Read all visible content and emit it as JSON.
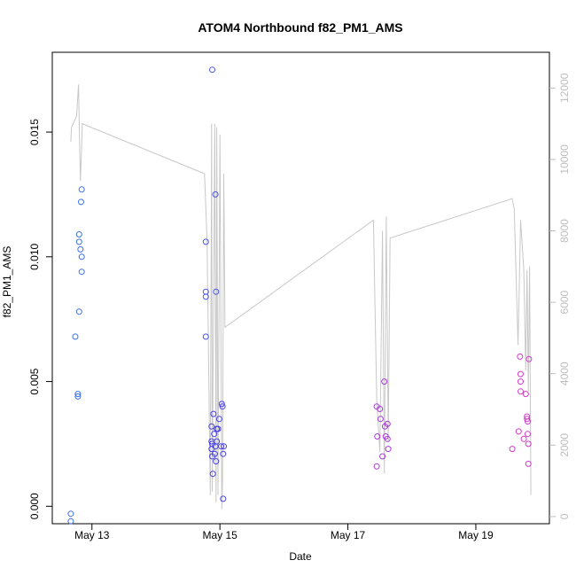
{
  "chart_data": {
    "type": "scatter",
    "title": "ATOM4 Northbound f82_PM1_AMS",
    "xlabel": "Date",
    "ylabel": "f82_PM1_AMS",
    "x_unit": "days since May 13 00:00",
    "xlim": [
      -0.62,
      7.15
    ],
    "ylim": [
      -0.0007,
      0.0182
    ],
    "y2lim": [
      -200,
      13000
    ],
    "x_ticks": [
      {
        "value": 0,
        "label": "May 13"
      },
      {
        "value": 2,
        "label": "May 15"
      },
      {
        "value": 4,
        "label": "May 17"
      },
      {
        "value": 6,
        "label": "May 19"
      }
    ],
    "y_ticks": [
      {
        "value": 0.0,
        "label": "0.000"
      },
      {
        "value": 0.005,
        "label": "0.005"
      },
      {
        "value": 0.01,
        "label": "0.010"
      },
      {
        "value": 0.015,
        "label": "0.015"
      }
    ],
    "y2_ticks": [
      {
        "value": 0,
        "label": "0"
      },
      {
        "value": 2000,
        "label": "2000"
      },
      {
        "value": 4000,
        "label": "4000"
      },
      {
        "value": 6000,
        "label": "6000"
      },
      {
        "value": 8000,
        "label": "8000"
      },
      {
        "value": 10000,
        "label": "10000"
      },
      {
        "value": 12000,
        "label": "12000"
      }
    ],
    "series": [
      {
        "name": "",
        "style": "points",
        "axis": "left",
        "points": [
          {
            "x": -0.33,
            "y": -0.0003,
            "c": "#3a6fe8"
          },
          {
            "x": -0.33,
            "y": -0.0006,
            "c": "#3a6fe8"
          },
          {
            "x": -0.26,
            "y": 0.0068,
            "c": "#3a6fe8"
          },
          {
            "x": -0.22,
            "y": 0.0045,
            "c": "#3a6fe8"
          },
          {
            "x": -0.22,
            "y": 0.0044,
            "c": "#3a6fe8"
          },
          {
            "x": -0.2,
            "y": 0.0078,
            "c": "#3a6fe8"
          },
          {
            "x": -0.2,
            "y": 0.0109,
            "c": "#3a6fe8"
          },
          {
            "x": -0.2,
            "y": 0.0106,
            "c": "#3a6fe8"
          },
          {
            "x": -0.18,
            "y": 0.0103,
            "c": "#3a6fe8"
          },
          {
            "x": -0.17,
            "y": 0.0122,
            "c": "#3a6fe8"
          },
          {
            "x": -0.16,
            "y": 0.0127,
            "c": "#3a6fe8"
          },
          {
            "x": -0.16,
            "y": 0.0094,
            "c": "#3a6fe8"
          },
          {
            "x": -0.16,
            "y": 0.01,
            "c": "#3a6fe8"
          },
          {
            "x": 1.78,
            "y": 0.0106,
            "c": "#4a55e6"
          },
          {
            "x": 1.78,
            "y": 0.0086,
            "c": "#4a55e6"
          },
          {
            "x": 1.78,
            "y": 0.0084,
            "c": "#4a55e6"
          },
          {
            "x": 1.78,
            "y": 0.0068,
            "c": "#4a55e6"
          },
          {
            "x": 1.88,
            "y": 0.0175,
            "c": "#4a55e6"
          },
          {
            "x": 1.93,
            "y": 0.0125,
            "c": "#4a55e6"
          },
          {
            "x": 1.94,
            "y": 0.0086,
            "c": "#4a55e6"
          },
          {
            "x": 1.87,
            "y": 0.0032,
            "c": "#4a40e4"
          },
          {
            "x": 1.87,
            "y": 0.0026,
            "c": "#4a40e4"
          },
          {
            "x": 1.88,
            "y": 0.0025,
            "c": "#4a40e4"
          },
          {
            "x": 1.87,
            "y": 0.0023,
            "c": "#4a40e4"
          },
          {
            "x": 1.88,
            "y": 0.002,
            "c": "#4a40e4"
          },
          {
            "x": 1.89,
            "y": 0.0013,
            "c": "#4a40e4"
          },
          {
            "x": 1.9,
            "y": 0.0037,
            "c": "#4a40e4"
          },
          {
            "x": 1.91,
            "y": 0.0029,
            "c": "#4a40e4"
          },
          {
            "x": 1.92,
            "y": 0.0021,
            "c": "#4a40e4"
          },
          {
            "x": 1.93,
            "y": 0.0024,
            "c": "#4a40e4"
          },
          {
            "x": 1.94,
            "y": 0.0018,
            "c": "#4a40e4"
          },
          {
            "x": 1.95,
            "y": 0.0026,
            "c": "#4a40e4"
          },
          {
            "x": 1.95,
            "y": 0.0031,
            "c": "#4a40e4"
          },
          {
            "x": 1.97,
            "y": 0.0031,
            "c": "#4a40e4"
          },
          {
            "x": 1.99,
            "y": 0.0035,
            "c": "#4a40e4"
          },
          {
            "x": 2.02,
            "y": 0.0024,
            "c": "#4a40e4"
          },
          {
            "x": 2.03,
            "y": 0.0041,
            "c": "#4a40e4"
          },
          {
            "x": 2.04,
            "y": 0.004,
            "c": "#4a40e4"
          },
          {
            "x": 2.05,
            "y": 0.0021,
            "c": "#4a40e4"
          },
          {
            "x": 2.06,
            "y": 0.0024,
            "c": "#4a40e4"
          },
          {
            "x": 2.05,
            "y": 0.0003,
            "c": "#4a40e4"
          },
          {
            "x": 4.45,
            "y": 0.0016,
            "c": "#a93ad8"
          },
          {
            "x": 4.45,
            "y": 0.004,
            "c": "#a93ad8"
          },
          {
            "x": 4.46,
            "y": 0.0028,
            "c": "#a93ad8"
          },
          {
            "x": 4.5,
            "y": 0.0039,
            "c": "#a93ad8"
          },
          {
            "x": 4.51,
            "y": 0.0035,
            "c": "#a93ad8"
          },
          {
            "x": 4.54,
            "y": 0.002,
            "c": "#a93ad8"
          },
          {
            "x": 4.57,
            "y": 0.005,
            "c": "#a93ad8"
          },
          {
            "x": 4.58,
            "y": 0.0032,
            "c": "#a93ad8"
          },
          {
            "x": 4.59,
            "y": 0.0028,
            "c": "#a93ad8"
          },
          {
            "x": 4.62,
            "y": 0.0027,
            "c": "#a93ad8"
          },
          {
            "x": 4.62,
            "y": 0.0033,
            "c": "#a93ad8"
          },
          {
            "x": 4.63,
            "y": 0.0023,
            "c": "#a93ad8"
          },
          {
            "x": 6.57,
            "y": 0.0023,
            "c": "#d23ac8"
          },
          {
            "x": 6.67,
            "y": 0.003,
            "c": "#d23ac8"
          },
          {
            "x": 6.69,
            "y": 0.006,
            "c": "#d23ac8"
          },
          {
            "x": 6.7,
            "y": 0.0053,
            "c": "#d23ac8"
          },
          {
            "x": 6.7,
            "y": 0.005,
            "c": "#d23ac8"
          },
          {
            "x": 6.7,
            "y": 0.0046,
            "c": "#d23ac8"
          },
          {
            "x": 6.75,
            "y": 0.0027,
            "c": "#d23ac8"
          },
          {
            "x": 6.78,
            "y": 0.0045,
            "c": "#d23ac8"
          },
          {
            "x": 6.8,
            "y": 0.0036,
            "c": "#d23ac8"
          },
          {
            "x": 6.8,
            "y": 0.0035,
            "c": "#d23ac8"
          },
          {
            "x": 6.81,
            "y": 0.0034,
            "c": "#d23ac8"
          },
          {
            "x": 6.81,
            "y": 0.0029,
            "c": "#d23ac8"
          },
          {
            "x": 6.82,
            "y": 0.0025,
            "c": "#d23ac8"
          },
          {
            "x": 6.82,
            "y": 0.0017,
            "c": "#d23ac8"
          },
          {
            "x": 6.83,
            "y": 0.0059,
            "c": "#d23ac8"
          }
        ]
      },
      {
        "name": "",
        "style": "line",
        "axis": "right",
        "color": "#c8c8c8",
        "points": [
          {
            "x": -0.33,
            "y": 10500
          },
          {
            "x": -0.32,
            "y": 10900
          },
          {
            "x": -0.27,
            "y": 11100
          },
          {
            "x": -0.24,
            "y": 11200
          },
          {
            "x": -0.21,
            "y": 12100
          },
          {
            "x": -0.19,
            "y": 10200
          },
          {
            "x": -0.18,
            "y": 9400
          },
          {
            "x": -0.15,
            "y": 11000
          },
          {
            "x": 1.76,
            "y": 9600
          },
          {
            "x": 1.8,
            "y": 7700
          },
          {
            "x": 1.85,
            "y": 600
          },
          {
            "x": 1.87,
            "y": 11000
          },
          {
            "x": 1.88,
            "y": 700
          },
          {
            "x": 1.92,
            "y": 11000
          },
          {
            "x": 1.94,
            "y": 400
          },
          {
            "x": 1.95,
            "y": 10900
          },
          {
            "x": 1.97,
            "y": 600
          },
          {
            "x": 2.0,
            "y": 10700
          },
          {
            "x": 2.03,
            "y": 200
          },
          {
            "x": 2.04,
            "y": 1000
          },
          {
            "x": 2.06,
            "y": 9600
          },
          {
            "x": 2.08,
            "y": 5300
          },
          {
            "x": 4.4,
            "y": 8300
          },
          {
            "x": 4.45,
            "y": 3300
          },
          {
            "x": 4.5,
            "y": 1800
          },
          {
            "x": 4.54,
            "y": 8000
          },
          {
            "x": 4.57,
            "y": 1200
          },
          {
            "x": 4.6,
            "y": 8400
          },
          {
            "x": 4.63,
            "y": 2100
          },
          {
            "x": 4.66,
            "y": 7800
          },
          {
            "x": 6.57,
            "y": 8900
          },
          {
            "x": 6.6,
            "y": 8600
          },
          {
            "x": 6.66,
            "y": 4800
          },
          {
            "x": 6.7,
            "y": 8300
          },
          {
            "x": 6.75,
            "y": 6900
          },
          {
            "x": 6.78,
            "y": 4100
          },
          {
            "x": 6.8,
            "y": 6900
          },
          {
            "x": 6.82,
            "y": 3500
          },
          {
            "x": 6.84,
            "y": 7000
          },
          {
            "x": 6.86,
            "y": 600
          }
        ]
      }
    ],
    "grid": false,
    "legend": "none"
  }
}
